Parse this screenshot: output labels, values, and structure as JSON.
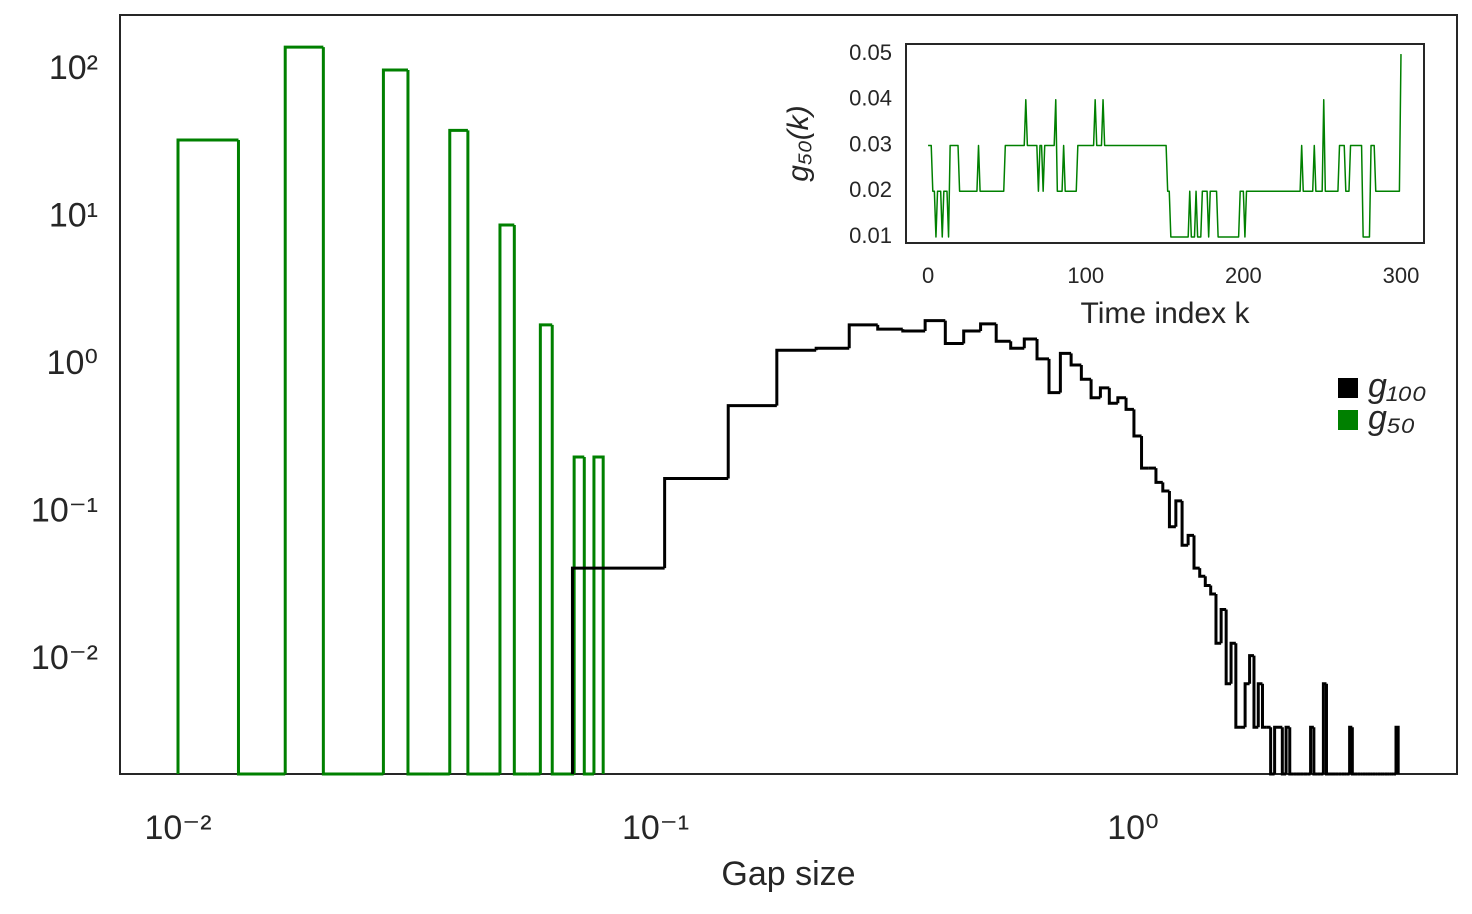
{
  "chart_data": [
    {
      "type": "histogram",
      "xlabel": "Gap size",
      "xscale": "log",
      "yscale": "log",
      "xlim": [
        0.00756,
        4.77
      ],
      "ylim": [
        0.001687,
        236
      ],
      "xticks": [
        {
          "value": 0.01,
          "label": "10⁻²"
        },
        {
          "value": 0.1,
          "label": "10⁻¹"
        },
        {
          "value": 1,
          "label": "10⁰"
        }
      ],
      "yticks": [
        {
          "value": 0.01,
          "label": "10⁻²"
        },
        {
          "value": 0.1,
          "label": "10⁻¹"
        },
        {
          "value": 1,
          "label": "10⁰"
        },
        {
          "value": 10,
          "label": "10¹"
        },
        {
          "value": 100,
          "label": "10²"
        }
      ],
      "grid": false,
      "legend": "right",
      "series": [
        {
          "name": "g₁₀₀",
          "color": "#000000",
          "bins": [
            0.067,
            0.1045,
            0.142,
            0.1795,
            0.217,
            0.2545,
            0.292,
            0.3295,
            0.367,
            0.4045,
            0.442,
            0.4795,
            0.517,
            0.5545,
            0.592,
            0.6295,
            0.667,
            0.7045,
            0.742,
            0.7795,
            0.817,
            0.8545,
            0.892,
            0.9295,
            0.967,
            1.0045,
            1.042,
            1.0795,
            1.117,
            1.1545,
            1.192,
            1.2295,
            1.267,
            1.3045,
            1.342,
            1.3795,
            1.417,
            1.4545,
            1.492,
            1.5295,
            1.567,
            1.6045,
            1.642,
            1.6795,
            1.717,
            1.7545,
            1.792,
            1.8295,
            1.867,
            1.9045,
            1.942,
            1.9795,
            2.017,
            2.0545,
            2.092,
            2.1295,
            2.167,
            2.2045,
            2.242,
            2.2795,
            2.317,
            2.3545,
            2.392,
            2.4295,
            2.467,
            2.5045,
            2.542,
            2.5795,
            2.617,
            2.6545,
            2.692,
            2.7295,
            2.767,
            2.8045,
            2.842,
            2.8795,
            2.917,
            2.9545,
            2.992,
            3.0295,
            3.067,
            3.1045,
            3.142,
            3.1795,
            3.217,
            3.2545,
            3.292,
            3.3295,
            3.367,
            3.4045,
            3.442,
            3.4795,
            3.517,
            3.5545,
            3.592
          ],
          "values": [
            0.042,
            0.17,
            0.53,
            1.26,
            1.3,
            1.87,
            1.75,
            1.7,
            2.0,
            1.4,
            1.7,
            1.9,
            1.45,
            1.3,
            1.5,
            1.1,
            0.65,
            1.2,
            1.0,
            0.8,
            0.6,
            0.7,
            0.55,
            0.6,
            0.5,
            0.33,
            0.2,
            0.2,
            0.16,
            0.14,
            0.08,
            0.12,
            0.06,
            0.07,
            0.042,
            0.037,
            0.032,
            0.028,
            0.013,
            0.022,
            0.0069,
            0.013,
            0.0035,
            0.0035,
            0.0069,
            0.0107,
            0.0035,
            0.0069,
            0.0035,
            0.0035,
            0,
            0.0035,
            0.0035,
            0,
            0.0035,
            0,
            0,
            0,
            0,
            0,
            0,
            0.0035,
            0,
            0,
            0,
            0.0069,
            0,
            0,
            0,
            0,
            0,
            0,
            0,
            0,
            0.0035,
            0,
            0,
            0,
            0,
            0,
            0,
            0,
            0,
            0,
            0,
            0,
            0,
            0,
            0,
            0,
            0,
            0,
            0,
            0.0035
          ]
        },
        {
          "name": "g₅₀",
          "color": "#008000",
          "bins": [
            0.01,
            0.013385,
            0.01677,
            0.020155,
            0.02354,
            0.026925,
            0.03031,
            0.033695,
            0.03708,
            0.040465,
            0.04385,
            0.047235,
            0.05062,
            0.054005,
            0.05739,
            0.060775,
            0.06416,
            0.067545,
            0.07093,
            0.074315,
            0.0777
          ],
          "values": [
            33.5,
            0,
            143,
            0,
            0,
            100,
            0,
            0,
            39,
            0,
            0,
            8.9,
            0,
            0,
            1.87,
            0,
            0,
            0.238,
            0,
            0.238
          ]
        }
      ]
    },
    {
      "type": "line",
      "xlabel": "Time index k",
      "ylabel": "g₅₀(k)",
      "color": "#008000",
      "xlim": [
        -14,
        314.6
      ],
      "ylim": [
        0.00869,
        0.0522
      ],
      "xticks": [
        0,
        100,
        200,
        300
      ],
      "yticks": [
        0.01,
        0.02,
        0.03,
        0.04,
        0.05
      ],
      "grid": false,
      "x": [
        0,
        1,
        2,
        3,
        4,
        5,
        6,
        7,
        8,
        9,
        10,
        11,
        12,
        13,
        14,
        15,
        16,
        17,
        18,
        19,
        20,
        21,
        22,
        23,
        24,
        25,
        26,
        27,
        28,
        29,
        30,
        31,
        32,
        33,
        34,
        35,
        36,
        37,
        38,
        39,
        40,
        41,
        42,
        43,
        44,
        45,
        46,
        47,
        48,
        49,
        50,
        51,
        52,
        53,
        54,
        55,
        56,
        57,
        58,
        59,
        60,
        61,
        62,
        63,
        64,
        65,
        66,
        67,
        68,
        69,
        70,
        71,
        72,
        73,
        74,
        75,
        76,
        77,
        78,
        79,
        80,
        81,
        82,
        83,
        84,
        85,
        86,
        87,
        88,
        89,
        90,
        91,
        92,
        93,
        94,
        95,
        96,
        97,
        98,
        99,
        100,
        101,
        102,
        103,
        104,
        105,
        106,
        107,
        108,
        109,
        110,
        111,
        112,
        113,
        114,
        115,
        116,
        117,
        118,
        119,
        120,
        121,
        122,
        123,
        124,
        125,
        126,
        127,
        128,
        129,
        130,
        131,
        132,
        133,
        134,
        135,
        136,
        137,
        138,
        139,
        140,
        141,
        142,
        143,
        144,
        145,
        146,
        147,
        148,
        149,
        150,
        151,
        152,
        153,
        154,
        155,
        156,
        157,
        158,
        159,
        160,
        161,
        162,
        163,
        164,
        165,
        166,
        167,
        168,
        169,
        170,
        171,
        172,
        173,
        174,
        175,
        176,
        177,
        178,
        179,
        180,
        181,
        182,
        183,
        184,
        185,
        186,
        187,
        188,
        189,
        190,
        191,
        192,
        193,
        194,
        195,
        196,
        197,
        198,
        199,
        200,
        201,
        202,
        203,
        204,
        205,
        206,
        207,
        208,
        209,
        210,
        211,
        212,
        213,
        214,
        215,
        216,
        217,
        218,
        219,
        220,
        221,
        222,
        223,
        224,
        225,
        226,
        227,
        228,
        229,
        230,
        231,
        232,
        233,
        234,
        235,
        236,
        237,
        238,
        239,
        240,
        241,
        242,
        243,
        244,
        245,
        246,
        247,
        248,
        249,
        250,
        251,
        252,
        253,
        254,
        255,
        256,
        257,
        258,
        259,
        260,
        261,
        262,
        263,
        264,
        265,
        266,
        267,
        268,
        269,
        270,
        271,
        272,
        273,
        274,
        275,
        276,
        277,
        278,
        279,
        280,
        281,
        282,
        283,
        284,
        285,
        286,
        287,
        288,
        289,
        290,
        291,
        292,
        293,
        294,
        295,
        296,
        297,
        298,
        299,
        300
      ],
      "values": [
        0.03,
        0.03,
        0.03,
        0.02,
        0.02,
        0.01,
        0.02,
        0.02,
        0.02,
        0.01,
        0.02,
        0.02,
        0.02,
        0.01,
        0.03,
        0.03,
        0.03,
        0.03,
        0.03,
        0.03,
        0.02,
        0.02,
        0.02,
        0.02,
        0.02,
        0.02,
        0.02,
        0.02,
        0.02,
        0.02,
        0.02,
        0.02,
        0.03,
        0.02,
        0.02,
        0.02,
        0.02,
        0.02,
        0.02,
        0.02,
        0.02,
        0.02,
        0.02,
        0.02,
        0.02,
        0.02,
        0.02,
        0.02,
        0.02,
        0.03,
        0.03,
        0.03,
        0.03,
        0.03,
        0.03,
        0.03,
        0.03,
        0.03,
        0.03,
        0.03,
        0.03,
        0.03,
        0.04,
        0.03,
        0.03,
        0.03,
        0.03,
        0.03,
        0.03,
        0.03,
        0.02,
        0.03,
        0.03,
        0.02,
        0.03,
        0.03,
        0.03,
        0.03,
        0.03,
        0.03,
        0.03,
        0.04,
        0.02,
        0.02,
        0.02,
        0.02,
        0.03,
        0.02,
        0.02,
        0.02,
        0.02,
        0.02,
        0.02,
        0.02,
        0.02,
        0.03,
        0.03,
        0.03,
        0.03,
        0.03,
        0.03,
        0.03,
        0.03,
        0.03,
        0.03,
        0.03,
        0.04,
        0.03,
        0.03,
        0.03,
        0.03,
        0.04,
        0.03,
        0.03,
        0.03,
        0.03,
        0.03,
        0.03,
        0.03,
        0.03,
        0.03,
        0.03,
        0.03,
        0.03,
        0.03,
        0.03,
        0.03,
        0.03,
        0.03,
        0.03,
        0.03,
        0.03,
        0.03,
        0.03,
        0.03,
        0.03,
        0.03,
        0.03,
        0.03,
        0.03,
        0.03,
        0.03,
        0.03,
        0.03,
        0.03,
        0.03,
        0.03,
        0.03,
        0.03,
        0.03,
        0.03,
        0.03,
        0.02,
        0.02,
        0.01,
        0.01,
        0.01,
        0.01,
        0.01,
        0.01,
        0.01,
        0.01,
        0.01,
        0.01,
        0.01,
        0.01,
        0.02,
        0.01,
        0.01,
        0.01,
        0.02,
        0.01,
        0.01,
        0.01,
        0.02,
        0.02,
        0.02,
        0.02,
        0.01,
        0.02,
        0.02,
        0.02,
        0.02,
        0.02,
        0.01,
        0.01,
        0.01,
        0.01,
        0.01,
        0.01,
        0.01,
        0.01,
        0.01,
        0.01,
        0.01,
        0.01,
        0.01,
        0.01,
        0.02,
        0.02,
        0.02,
        0.01,
        0.02,
        0.02,
        0.02,
        0.02,
        0.02,
        0.02,
        0.02,
        0.02,
        0.02,
        0.02,
        0.02,
        0.02,
        0.02,
        0.02,
        0.02,
        0.02,
        0.02,
        0.02,
        0.02,
        0.02,
        0.02,
        0.02,
        0.02,
        0.02,
        0.02,
        0.02,
        0.02,
        0.02,
        0.02,
        0.02,
        0.02,
        0.02,
        0.02,
        0.02,
        0.02,
        0.03,
        0.02,
        0.02,
        0.02,
        0.02,
        0.02,
        0.02,
        0.02,
        0.03,
        0.02,
        0.02,
        0.02,
        0.02,
        0.02,
        0.04,
        0.02,
        0.02,
        0.02,
        0.02,
        0.02,
        0.02,
        0.02,
        0.02,
        0.02,
        0.03,
        0.03,
        0.03,
        0.03,
        0.02,
        0.02,
        0.02,
        0.03,
        0.03,
        0.03,
        0.03,
        0.03,
        0.03,
        0.03,
        0.03,
        0.01,
        0.01,
        0.01,
        0.01,
        0.01,
        0.03,
        0.03,
        0.03,
        0.02,
        0.02,
        0.02,
        0.02,
        0.02,
        0.02,
        0.02,
        0.02,
        0.02,
        0.02,
        0.02,
        0.02,
        0.02,
        0.02,
        0.02,
        0.02,
        0.05
      ]
    }
  ]
}
